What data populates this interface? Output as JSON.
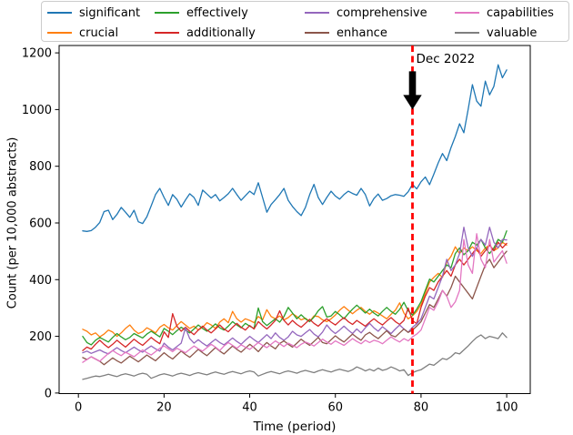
{
  "figure_background": "#ffffff",
  "chart_data": {
    "type": "line",
    "title": "",
    "xlabel": "Time (period)",
    "ylabel": "Count (per 10,000 abstracts)",
    "xlim": [
      -4.5,
      105.5
    ],
    "ylim": [
      -2,
      1226
    ],
    "xticks": [
      0,
      20,
      40,
      60,
      80,
      100
    ],
    "yticks": [
      0,
      200,
      400,
      600,
      800,
      1000,
      1200
    ],
    "grid": false,
    "legend_position": "top",
    "legend_ncol": 4,
    "annotation": {
      "text": "Dec 2022",
      "vline_x": 78,
      "vline_color": "#ff0000",
      "vline_style": "dashed",
      "arrow_color": "#000000",
      "arrow_tail_y": 1135,
      "arrow_tip_y": 1000
    },
    "x": [
      1,
      2,
      3,
      4,
      5,
      6,
      7,
      8,
      9,
      10,
      11,
      12,
      13,
      14,
      15,
      16,
      17,
      18,
      19,
      20,
      21,
      22,
      23,
      24,
      25,
      26,
      27,
      28,
      29,
      30,
      31,
      32,
      33,
      34,
      35,
      36,
      37,
      38,
      39,
      40,
      41,
      42,
      43,
      44,
      45,
      46,
      47,
      48,
      49,
      50,
      51,
      52,
      53,
      54,
      55,
      56,
      57,
      58,
      59,
      60,
      61,
      62,
      63,
      64,
      65,
      66,
      67,
      68,
      69,
      70,
      71,
      72,
      73,
      74,
      75,
      76,
      77,
      78,
      79,
      80,
      81,
      82,
      83,
      84,
      85,
      86,
      87,
      88,
      89,
      90,
      91,
      92,
      93,
      94,
      95,
      96,
      97,
      98,
      99,
      100
    ],
    "series": [
      {
        "name": "significant",
        "color": "#1f77b4",
        "values": [
          572,
          570,
          573,
          585,
          602,
          640,
          645,
          612,
          630,
          655,
          638,
          620,
          645,
          604,
          598,
          622,
          660,
          700,
          722,
          690,
          662,
          700,
          683,
          656,
          681,
          703,
          690,
          662,
          716,
          702,
          688,
          700,
          678,
          690,
          703,
          722,
          700,
          680,
          696,
          712,
          700,
          742,
          690,
          638,
          665,
          682,
          700,
          722,
          680,
          658,
          640,
          626,
          655,
          700,
          736,
          690,
          665,
          690,
          712,
          695,
          684,
          700,
          712,
          704,
          698,
          722,
          700,
          660,
          686,
          702,
          680,
          686,
          696,
          700,
          698,
          694,
          710,
          736,
          720,
          745,
          762,
          735,
          772,
          812,
          845,
          820,
          866,
          905,
          950,
          918,
          1000,
          1088,
          1030,
          1012,
          1100,
          1052,
          1082,
          1158,
          1112,
          1140
        ]
      },
      {
        "name": "crucial",
        "color": "#ff7f0e",
        "values": [
          225,
          218,
          205,
          212,
          198,
          208,
          222,
          215,
          200,
          212,
          228,
          240,
          222,
          210,
          216,
          230,
          222,
          212,
          232,
          242,
          230,
          222,
          238,
          252,
          240,
          228,
          236,
          222,
          232,
          248,
          240,
          228,
          250,
          262,
          248,
          288,
          262,
          250,
          262,
          256,
          248,
          270,
          258,
          294,
          270,
          262,
          272,
          258,
          266,
          280,
          270,
          258,
          264,
          252,
          272,
          270,
          258,
          252,
          262,
          275,
          292,
          305,
          292,
          280,
          292,
          302,
          288,
          278,
          290,
          282,
          272,
          262,
          278,
          292,
          318,
          282,
          262,
          272,
          288,
          312,
          352,
          392,
          408,
          422,
          408,
          462,
          482,
          516,
          492,
          512,
          502,
          516,
          502,
          492,
          512,
          522,
          502,
          512,
          532,
          522
        ]
      },
      {
        "name": "effectively",
        "color": "#2ca02c",
        "values": [
          200,
          178,
          170,
          186,
          196,
          188,
          180,
          196,
          210,
          198,
          188,
          196,
          210,
          202,
          194,
          208,
          218,
          208,
          198,
          228,
          218,
          206,
          220,
          232,
          222,
          212,
          226,
          240,
          228,
          218,
          230,
          244,
          230,
          222,
          236,
          252,
          240,
          230,
          246,
          236,
          228,
          300,
          252,
          238,
          250,
          262,
          250,
          270,
          302,
          282,
          262,
          276,
          262,
          252,
          268,
          290,
          305,
          268,
          272,
          288,
          276,
          262,
          280,
          296,
          310,
          296,
          282,
          296,
          282,
          272,
          288,
          302,
          288,
          278,
          295,
          320,
          290,
          275,
          296,
          322,
          362,
          402,
          392,
          412,
          432,
          452,
          442,
          492,
          512,
          488,
          502,
          532,
          522,
          542,
          512,
          492,
          512,
          542,
          532,
          572
        ]
      },
      {
        "name": "additionally",
        "color": "#d62728",
        "values": [
          150,
          162,
          155,
          172,
          186,
          172,
          160,
          172,
          186,
          174,
          162,
          176,
          190,
          178,
          168,
          182,
          196,
          184,
          174,
          216,
          196,
          280,
          236,
          218,
          232,
          218,
          206,
          222,
          236,
          222,
          212,
          226,
          240,
          226,
          216,
          232,
          246,
          232,
          222,
          238,
          226,
          252,
          238,
          226,
          240,
          256,
          290,
          256,
          240,
          256,
          242,
          232,
          246,
          260,
          246,
          236,
          250,
          262,
          250,
          240,
          254,
          266,
          252,
          242,
          256,
          246,
          236,
          250,
          262,
          250,
          240,
          254,
          266,
          252,
          242,
          256,
          300,
          255,
          245,
          302,
          342,
          372,
          362,
          392,
          412,
          432,
          412,
          452,
          472,
          452,
          472,
          492,
          512,
          482,
          502,
          522,
          502,
          532,
          512,
          528
        ]
      },
      {
        "name": "comprehensive",
        "color": "#9467bd",
        "values": [
          142,
          148,
          140,
          146,
          152,
          144,
          138,
          150,
          160,
          150,
          142,
          152,
          162,
          152,
          144,
          156,
          166,
          156,
          148,
          176,
          162,
          152,
          164,
          176,
          230,
          192,
          176,
          188,
          176,
          166,
          178,
          190,
          178,
          170,
          182,
          194,
          182,
          172,
          186,
          200,
          188,
          178,
          192,
          206,
          192,
          212,
          196,
          186,
          198,
          218,
          205,
          200,
          212,
          224,
          208,
          198,
          215,
          240,
          222,
          210,
          222,
          236,
          222,
          210,
          226,
          212,
          230,
          246,
          230,
          218,
          234,
          222,
          210,
          226,
          240,
          226,
          214,
          232,
          244,
          262,
          302,
          342,
          332,
          372,
          412,
          472,
          432,
          452,
          492,
          585,
          512,
          482,
          512,
          542,
          522,
          585,
          532,
          512,
          542,
          540
        ]
      },
      {
        "name": "enhance",
        "color": "#8c564b",
        "values": [
          125,
          118,
          128,
          120,
          112,
          100,
          112,
          124,
          114,
          106,
          118,
          130,
          120,
          110,
          122,
          134,
          124,
          114,
          128,
          142,
          130,
          120,
          134,
          148,
          136,
          126,
          140,
          154,
          142,
          132,
          146,
          160,
          148,
          138,
          152,
          166,
          154,
          144,
          158,
          172,
          160,
          146,
          164,
          178,
          166,
          156,
          175,
          184,
          172,
          162,
          176,
          190,
          178,
          168,
          182,
          196,
          178,
          174,
          188,
          202,
          190,
          180,
          194,
          208,
          196,
          186,
          205,
          214,
          202,
          192,
          206,
          220,
          204,
          198,
          212,
          226,
          214,
          222,
          236,
          252,
          282,
          312,
          302,
          332,
          362,
          342,
          372,
          412,
          392,
          372,
          352,
          332,
          372,
          412,
          452,
          472,
          442,
          462,
          482,
          500
        ]
      },
      {
        "name": "capabilities",
        "color": "#e377c2",
        "values": [
          108,
          118,
          128,
          120,
          112,
          126,
          140,
          150,
          140,
          132,
          144,
          136,
          128,
          140,
          152,
          142,
          134,
          146,
          158,
          166,
          156,
          146,
          158,
          150,
          142,
          154,
          166,
          156,
          148,
          160,
          172,
          162,
          150,
          166,
          178,
          168,
          158,
          170,
          162,
          154,
          166,
          178,
          168,
          160,
          172,
          184,
          174,
          164,
          176,
          168,
          160,
          172,
          180,
          174,
          166,
          178,
          190,
          180,
          172,
          184,
          176,
          168,
          180,
          192,
          182,
          174,
          186,
          178,
          186,
          182,
          174,
          186,
          198,
          188,
          180,
          192,
          184,
          198,
          208,
          222,
          262,
          302,
          292,
          322,
          362,
          342,
          302,
          322,
          362,
          542,
          452,
          422,
          562,
          472,
          442,
          542,
          462,
          482,
          502,
          458
        ]
      },
      {
        "name": "valuable",
        "color": "#7f7f7f",
        "values": [
          48,
          52,
          56,
          60,
          58,
          62,
          66,
          62,
          58,
          64,
          68,
          64,
          60,
          66,
          70,
          66,
          52,
          58,
          64,
          68,
          64,
          60,
          66,
          70,
          66,
          62,
          68,
          72,
          68,
          64,
          70,
          74,
          70,
          66,
          72,
          76,
          72,
          68,
          74,
          78,
          74,
          60,
          66,
          72,
          76,
          72,
          68,
          74,
          78,
          74,
          70,
          76,
          80,
          76,
          72,
          78,
          82,
          78,
          74,
          80,
          84,
          80,
          76,
          82,
          92,
          86,
          78,
          84,
          78,
          88,
          80,
          84,
          92,
          86,
          78,
          82,
          62,
          72,
          78,
          82,
          92,
          102,
          98,
          110,
          122,
          118,
          128,
          142,
          138,
          152,
          166,
          182,
          196,
          205,
          192,
          200,
          196,
          192,
          212,
          196
        ]
      }
    ]
  }
}
